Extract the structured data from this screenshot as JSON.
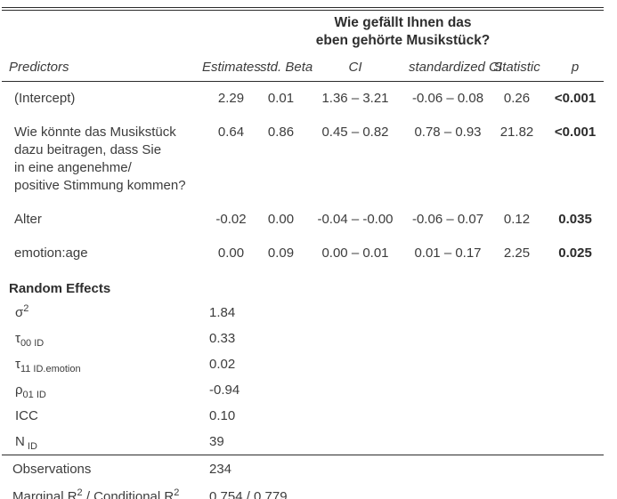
{
  "table": {
    "dependent_variable_title": "Wie gefällt Ihnen das\neben gehörte Musikstück?",
    "columns": {
      "predictors": "Predictors",
      "estimates": "Estimates",
      "std_beta": "std. Beta",
      "ci": "CI",
      "standardized_ci": "standardized CI",
      "statistic": "Statistic",
      "p": "p"
    },
    "fixed_effects": [
      {
        "predictor": "(Intercept)",
        "estimate": "2.29",
        "std_beta": "0.01",
        "ci": "1.36 – 3.21",
        "standardized_ci": "-0.06 – 0.08",
        "statistic": "0.26",
        "p": "<0.001"
      },
      {
        "predictor": "Wie könnte das Musikstück\ndazu beitragen, dass Sie\nin eine angenehme/\npositive Stimmung kommen?",
        "estimate": "0.64",
        "std_beta": "0.86",
        "ci": "0.45 – 0.82",
        "standardized_ci": "0.78 – 0.93",
        "statistic": "21.82",
        "p": "<0.001"
      },
      {
        "predictor": "Alter",
        "estimate": "-0.02",
        "std_beta": "0.00",
        "ci": "-0.04 – -0.00",
        "standardized_ci": "-0.06 – 0.07",
        "statistic": "0.12",
        "p": "0.035"
      },
      {
        "predictor": "emotion:age",
        "estimate": "0.00",
        "std_beta": "0.09",
        "ci": "0.00 – 0.01",
        "standardized_ci": "0.01 – 0.17",
        "statistic": "2.25",
        "p": "0.025"
      }
    ],
    "random_effects_heading": "Random Effects",
    "random_effects": [
      {
        "base": "σ",
        "sup": "2",
        "sub": "",
        "value": "1.84"
      },
      {
        "base": "τ",
        "sup": "",
        "sub": "00 ID",
        "value": "0.33"
      },
      {
        "base": "τ",
        "sup": "",
        "sub": "11 ID.emotion",
        "value": "0.02"
      },
      {
        "base": "ρ",
        "sup": "",
        "sub": "01 ID",
        "value": "-0.94"
      },
      {
        "base": "ICC",
        "sup": "",
        "sub": "",
        "value": "0.10"
      },
      {
        "base": "N",
        "sup": "",
        "sub": " ID",
        "value": "39"
      }
    ],
    "summary": {
      "observations_label": "Observations",
      "observations_value": "234",
      "r2_label_pre": "Marginal R",
      "r2_sup1": "2",
      "r2_label_mid": " / Conditional R",
      "r2_sup2": "2",
      "r2_value": "0.754 / 0.779"
    }
  }
}
